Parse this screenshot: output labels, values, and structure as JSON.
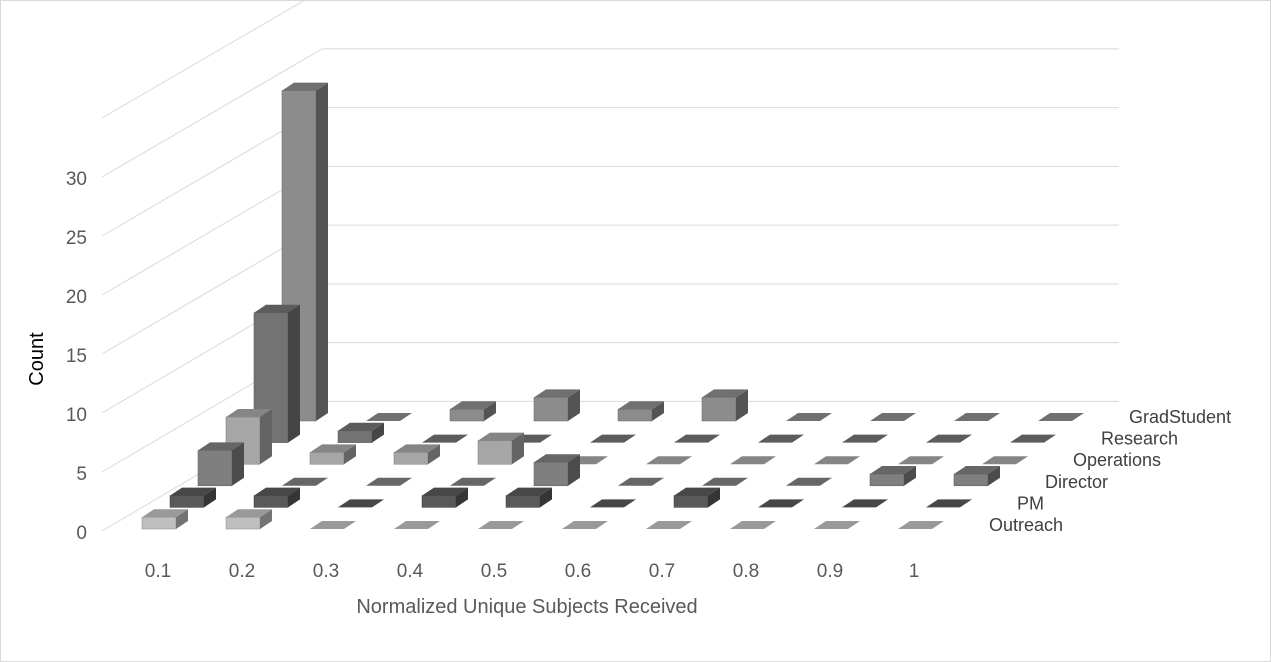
{
  "chart_data": {
    "type": "bar3d",
    "title": "",
    "xlabel": "Normalized Unique Subjects Received",
    "ylabel": "Count",
    "ylim": [
      0,
      35
    ],
    "yticks": [
      0,
      5,
      10,
      15,
      20,
      25,
      30
    ],
    "categories": [
      "0.1",
      "0.2",
      "0.3",
      "0.4",
      "0.5",
      "0.6",
      "0.7",
      "0.8",
      "0.9",
      "1"
    ],
    "series": [
      {
        "name": "Outreach",
        "color": "#bfbfbf",
        "values": [
          1,
          1,
          0,
          0,
          0,
          0,
          0,
          0,
          0,
          0
        ]
      },
      {
        "name": "PM",
        "color": "#595959",
        "values": [
          1,
          1,
          0,
          1,
          1,
          0,
          1,
          0,
          0,
          0
        ]
      },
      {
        "name": "Director",
        "color": "#7f7f7f",
        "values": [
          3,
          0,
          0,
          0,
          2,
          0,
          0,
          0,
          1,
          1
        ]
      },
      {
        "name": "Operations",
        "color": "#a6a6a6",
        "values": [
          4,
          1,
          1,
          2,
          0,
          0,
          0,
          0,
          0,
          0
        ]
      },
      {
        "name": "Research",
        "color": "#737373",
        "values": [
          11,
          1,
          0,
          0,
          0,
          0,
          0,
          0,
          0,
          0
        ]
      },
      {
        "name": "GradStudent",
        "color": "#8c8c8c",
        "values": [
          28,
          0,
          1,
          2,
          1,
          2,
          0,
          0,
          0,
          0
        ]
      }
    ],
    "grid": true,
    "legend": "series labels along depth axis (right)"
  }
}
